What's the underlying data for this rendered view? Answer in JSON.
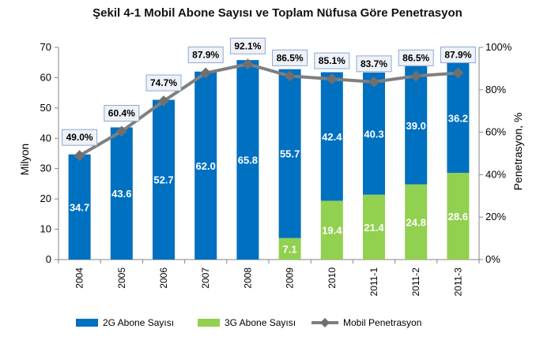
{
  "title": "Şekil 4-1 Mobil Abone Sayısı ve Toplam Nüfusa Göre Penetrasyon",
  "chart_data": {
    "type": "bar",
    "stacked": true,
    "categories": [
      "2004",
      "2005",
      "2006",
      "2007",
      "2008",
      "2009",
      "2010",
      "2011-1",
      "2011-2",
      "2011-3"
    ],
    "series": [
      {
        "name": "2G Abone Sayısı",
        "type": "bar",
        "axis": "left",
        "color": "#0070C0",
        "values": [
          34.7,
          43.6,
          52.7,
          62.0,
          65.8,
          55.7,
          42.4,
          40.3,
          39.0,
          36.2
        ]
      },
      {
        "name": "3G Abone Sayısı",
        "type": "bar",
        "axis": "left",
        "color": "#92D050",
        "values": [
          0,
          0,
          0,
          0,
          0,
          7.1,
          19.4,
          21.4,
          24.8,
          28.6
        ]
      },
      {
        "name": "Mobil Penetrasyon",
        "type": "line",
        "axis": "right",
        "color": "#7F7F7F",
        "values": [
          49.0,
          60.4,
          74.7,
          87.9,
          92.1,
          86.5,
          85.1,
          83.7,
          86.5,
          87.9
        ]
      }
    ],
    "value_labels_2g": [
      "34.7",
      "43.6",
      "52.7",
      "62.0",
      "65.8",
      "55.7",
      "42.4",
      "40.3",
      "39.0",
      "36.2"
    ],
    "value_labels_3g": [
      "",
      "",
      "",
      "",
      "",
      "7.1",
      "19.4",
      "21.4",
      "24.8",
      "28.6"
    ],
    "penetration_labels": [
      "49.0%",
      "60.4%",
      "74.7%",
      "87.9%",
      "92.1%",
      "86.5%",
      "85.1%",
      "83.7%",
      "86.5%",
      "87.9%"
    ],
    "ylabel": "Milyon",
    "y2label": "Penetrasyon, %",
    "ylim": [
      0,
      70
    ],
    "y2lim": [
      0,
      100
    ],
    "yticks": [
      "0",
      "10",
      "20",
      "30",
      "40",
      "50",
      "60",
      "70"
    ],
    "y2ticks": [
      "0%",
      "20%",
      "40%",
      "60%",
      "80%",
      "100%"
    ],
    "grid": false,
    "legend_position": "bottom"
  }
}
